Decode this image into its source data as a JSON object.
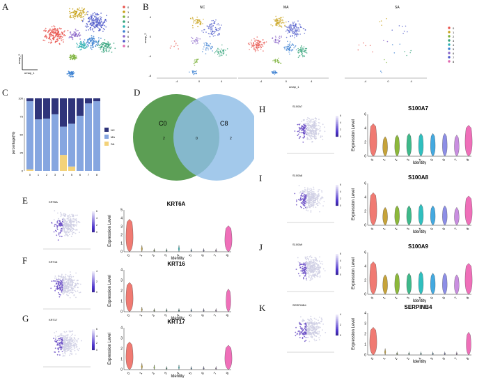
{
  "panel_labels": [
    "A",
    "B",
    "C",
    "D",
    "E",
    "F",
    "G",
    "H",
    "I",
    "J",
    "K"
  ],
  "panelA": {
    "clusters": [
      "0",
      "1",
      "2",
      "3",
      "4",
      "5",
      "6",
      "7",
      "8"
    ],
    "colors": [
      "#e8534c",
      "#c8a21a",
      "#7cb23a",
      "#33a37a",
      "#2eb0b0",
      "#3a7fd1",
      "#8a64c8",
      "#4e59c9",
      "#e069b0"
    ],
    "xaxis": "umap_1",
    "yaxis": "umap_2"
  },
  "panelB": {
    "titles": [
      "NC",
      "MA",
      "SA"
    ],
    "xaxis": "umap_1",
    "yaxis": "umap_2",
    "xticks": [
      "-4",
      "0",
      "4"
    ],
    "yticks": [
      "4",
      "0",
      "-4",
      "-8"
    ],
    "legend": [
      "0",
      "1",
      "2",
      "3",
      "4",
      "5",
      "6",
      "7",
      "8"
    ]
  },
  "panelC": {
    "chart_data": {
      "type": "bar",
      "stacked": true,
      "categories": [
        "0",
        "1",
        "2",
        "3",
        "4",
        "5",
        "6",
        "7",
        "8"
      ],
      "ylabel": "percentage(%)",
      "ylim": [
        0,
        100
      ],
      "yticks": [
        "0",
        "25",
        "50",
        "75",
        "100"
      ],
      "series": [
        {
          "name": "SA",
          "color": "#f3d27a",
          "values": [
            2,
            0,
            0,
            0,
            22,
            6,
            0,
            0,
            0
          ]
        },
        {
          "name": "MA",
          "color": "#86a6e0",
          "values": [
            94,
            71,
            72,
            78,
            39,
            59,
            76,
            93,
            96
          ]
        },
        {
          "name": "NC",
          "color": "#2f347a",
          "values": [
            4,
            29,
            28,
            22,
            39,
            35,
            24,
            7,
            4
          ]
        }
      ]
    }
  },
  "panelD": {
    "left_label": "C0",
    "right_label": "C8",
    "left_only": "2",
    "overlap": "0",
    "right_only": "2"
  },
  "violins": {
    "xlabel": "Identity",
    "ylabel": "Expression Level",
    "identities": [
      "0",
      "1",
      "2",
      "3",
      "4",
      "5",
      "6",
      "7",
      "8"
    ],
    "panels": [
      {
        "id": "E",
        "gene": "KRT6A",
        "yticks": [
          "0",
          "1",
          "2",
          "3",
          "4",
          "5"
        ],
        "ymax": 5.3
      },
      {
        "id": "F",
        "gene": "KRT16",
        "yticks": [
          "0",
          "1",
          "2",
          "3",
          "4"
        ],
        "ymax": 4.6
      },
      {
        "id": "G",
        "gene": "KRT17",
        "yticks": [
          "0",
          "1",
          "2",
          "3",
          "4"
        ],
        "ymax": 4.6
      },
      {
        "id": "H",
        "gene": "S100A7",
        "yticks": [
          "0",
          "2",
          "4",
          "6"
        ],
        "ymax": 6.6
      },
      {
        "id": "I",
        "gene": "S100A8",
        "yticks": [
          "0",
          "2",
          "4",
          "6"
        ],
        "ymax": 6.6
      },
      {
        "id": "J",
        "gene": "S100A9",
        "yticks": [
          "0",
          "2",
          "4",
          "6"
        ],
        "ymax": 6.6
      },
      {
        "id": "K",
        "gene": "SERPINB4",
        "yticks": [
          "0",
          "1",
          "2",
          "3",
          "4"
        ],
        "ymax": 4.6
      }
    ]
  },
  "featureplots": [
    {
      "id": "E",
      "gene": "KRT6A",
      "scale": [
        "0",
        "2",
        "4",
        "6"
      ]
    },
    {
      "id": "F",
      "gene": "KRT16",
      "scale": [
        "0",
        "2",
        "4"
      ]
    },
    {
      "id": "G",
      "gene": "KRT17",
      "scale": [
        "0",
        "2",
        "4",
        "6"
      ]
    },
    {
      "id": "H",
      "gene": "S100A7",
      "scale": [
        "0",
        "2",
        "4",
        "6"
      ]
    },
    {
      "id": "I",
      "gene": "S100A8",
      "scale": [
        "0",
        "2",
        "4",
        "6"
      ]
    },
    {
      "id": "J",
      "gene": "S100A9",
      "scale": [
        "0",
        "2",
        "4",
        "6"
      ]
    },
    {
      "id": "K",
      "gene": "SERPINB4",
      "scale": [
        "0",
        "2",
        "4"
      ]
    }
  ]
}
